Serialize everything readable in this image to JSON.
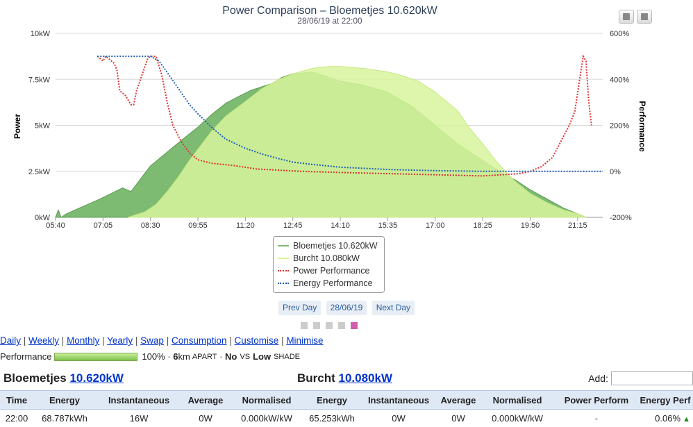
{
  "chart_data": {
    "type": "area",
    "title": "Power Comparison – Bloemetjes 10.620kW",
    "subtitle": "28/06/19 at 22:00",
    "ylabel": "Power",
    "y2label": "Performance",
    "ylim": [
      0,
      10
    ],
    "y2lim": [
      -200,
      600
    ],
    "yticks": [
      "0kW",
      "2.5kW",
      "5kW",
      "7.5kW",
      "10kW"
    ],
    "y2ticks": [
      "-200%",
      "0%",
      "200%",
      "400%",
      "600%"
    ],
    "xticks": [
      "05:40",
      "07:05",
      "08:30",
      "09:55",
      "11:20",
      "12:45",
      "14:10",
      "15:35",
      "17:00",
      "18:25",
      "19:50",
      "21:15"
    ],
    "x_start": "05:40",
    "x_end": "22:00",
    "grid": true,
    "series": [
      {
        "name": "Bloemetjes 10.620kW",
        "color": "#7dbb73",
        "axis": "left",
        "points": [
          [
            "05:40",
            0
          ],
          [
            "05:45",
            0.4
          ],
          [
            "05:50",
            0
          ],
          [
            "06:00",
            0.2
          ],
          [
            "06:30",
            0.6
          ],
          [
            "07:00",
            1.0
          ],
          [
            "07:20",
            1.3
          ],
          [
            "07:40",
            1.6
          ],
          [
            "07:55",
            1.4
          ],
          [
            "08:10",
            2.0
          ],
          [
            "08:30",
            2.8
          ],
          [
            "08:50",
            3.3
          ],
          [
            "09:10",
            3.8
          ],
          [
            "09:30",
            4.3
          ],
          [
            "09:55",
            4.9
          ],
          [
            "10:20",
            5.6
          ],
          [
            "10:45",
            6.2
          ],
          [
            "11:10",
            6.6
          ],
          [
            "11:30",
            6.9
          ],
          [
            "11:50",
            7.1
          ],
          [
            "12:10",
            7.3
          ],
          [
            "12:25",
            7.6
          ],
          [
            "12:45",
            7.8
          ],
          [
            "13:20",
            7.9
          ],
          [
            "14:10",
            7.4
          ],
          [
            "14:50",
            7.2
          ],
          [
            "15:35",
            6.8
          ],
          [
            "16:20",
            6.0
          ],
          [
            "17:00",
            5.0
          ],
          [
            "17:40",
            4.0
          ],
          [
            "18:25",
            3.1
          ],
          [
            "19:00",
            2.4
          ],
          [
            "19:25",
            2.0
          ],
          [
            "19:50",
            1.5
          ],
          [
            "20:20",
            1.0
          ],
          [
            "20:50",
            0.5
          ],
          [
            "21:15",
            0.2
          ],
          [
            "21:30",
            0
          ]
        ]
      },
      {
        "name": "Burcht 10.080kW",
        "color": "#d8f59c",
        "axis": "left",
        "points": [
          [
            "07:50",
            0
          ],
          [
            "08:00",
            0.1
          ],
          [
            "08:20",
            0.3
          ],
          [
            "08:40",
            0.7
          ],
          [
            "09:00",
            1.4
          ],
          [
            "09:20",
            2.2
          ],
          [
            "09:40",
            3.1
          ],
          [
            "09:55",
            3.7
          ],
          [
            "10:20",
            4.7
          ],
          [
            "10:45",
            5.5
          ],
          [
            "11:20",
            6.3
          ],
          [
            "11:50",
            7.0
          ],
          [
            "12:20",
            7.5
          ],
          [
            "12:45",
            7.8
          ],
          [
            "13:20",
            8.1
          ],
          [
            "13:50",
            8.2
          ],
          [
            "14:10",
            8.2
          ],
          [
            "14:50",
            8.1
          ],
          [
            "15:35",
            7.9
          ],
          [
            "16:00",
            7.7
          ],
          [
            "16:30",
            7.4
          ],
          [
            "17:00",
            6.8
          ],
          [
            "17:40",
            5.8
          ],
          [
            "18:00",
            4.9
          ],
          [
            "18:25",
            4.0
          ],
          [
            "18:45",
            3.2
          ],
          [
            "19:05",
            2.5
          ],
          [
            "19:25",
            1.9
          ],
          [
            "19:50",
            1.3
          ],
          [
            "20:20",
            0.8
          ],
          [
            "20:50",
            0.4
          ],
          [
            "21:15",
            0.2
          ],
          [
            "21:30",
            0
          ]
        ]
      },
      {
        "name": "Power Performance",
        "color": "#e03030",
        "axis": "right",
        "points": [
          [
            "06:55",
            500
          ],
          [
            "07:05",
            480
          ],
          [
            "07:10",
            500
          ],
          [
            "07:15",
            490
          ],
          [
            "07:20",
            480
          ],
          [
            "07:25",
            470
          ],
          [
            "07:30",
            440
          ],
          [
            "07:35",
            350
          ],
          [
            "07:45",
            330
          ],
          [
            "07:55",
            290
          ],
          [
            "08:00",
            290
          ],
          [
            "08:05",
            350
          ],
          [
            "08:15",
            420
          ],
          [
            "08:25",
            490
          ],
          [
            "08:30",
            500
          ],
          [
            "08:40",
            500
          ],
          [
            "08:50",
            420
          ],
          [
            "09:00",
            300
          ],
          [
            "09:10",
            200
          ],
          [
            "09:25",
            130
          ],
          [
            "09:40",
            80
          ],
          [
            "09:55",
            50
          ],
          [
            "10:20",
            35
          ],
          [
            "11:00",
            25
          ],
          [
            "11:40",
            10
          ],
          [
            "12:20",
            5
          ],
          [
            "13:00",
            0
          ],
          [
            "14:10",
            -5
          ],
          [
            "15:35",
            -10
          ],
          [
            "17:00",
            -15
          ],
          [
            "18:25",
            -20
          ],
          [
            "19:00",
            -15
          ],
          [
            "19:30",
            -10
          ],
          [
            "19:50",
            0
          ],
          [
            "20:10",
            20
          ],
          [
            "20:30",
            60
          ],
          [
            "20:45",
            130
          ],
          [
            "21:00",
            200
          ],
          [
            "21:10",
            260
          ],
          [
            "21:20",
            420
          ],
          [
            "21:25",
            500
          ],
          [
            "21:30",
            480
          ],
          [
            "21:35",
            300
          ],
          [
            "21:40",
            200
          ]
        ]
      },
      {
        "name": "Energy Performance",
        "color": "#1f5fb4",
        "axis": "right",
        "points": [
          [
            "06:55",
            500
          ],
          [
            "07:30",
            500
          ],
          [
            "08:00",
            500
          ],
          [
            "08:30",
            500
          ],
          [
            "08:45",
            480
          ],
          [
            "09:00",
            430
          ],
          [
            "09:20",
            360
          ],
          [
            "09:40",
            290
          ],
          [
            "09:55",
            250
          ],
          [
            "10:20",
            190
          ],
          [
            "10:45",
            140
          ],
          [
            "11:20",
            100
          ],
          [
            "11:50",
            75
          ],
          [
            "12:20",
            55
          ],
          [
            "12:45",
            40
          ],
          [
            "13:20",
            30
          ],
          [
            "14:10",
            18
          ],
          [
            "15:35",
            8
          ],
          [
            "17:00",
            3
          ],
          [
            "18:25",
            0
          ],
          [
            "19:50",
            0
          ],
          [
            "21:15",
            0
          ],
          [
            "22:00",
            0
          ]
        ]
      }
    ]
  },
  "daynav": {
    "prev": "Prev Day",
    "date": "28/06/19",
    "next": "Next Day"
  },
  "links": [
    "Daily",
    "Weekly",
    "Monthly",
    "Yearly",
    "Swap",
    "Consumption",
    "Customise",
    "Minimise"
  ],
  "performance": {
    "label": "Performance",
    "percent": "100%",
    "distance": "6",
    "distance_unit": "km",
    "apart": "APART",
    "orient_value": "No",
    "vs": "VS",
    "shade_value": "Low",
    "shade": "SHADE"
  },
  "sites": {
    "left_name": "Bloemetjes",
    "left_size": "10.620kW",
    "right_name": "Burcht",
    "right_size": "10.080kW",
    "add_label": "Add:"
  },
  "table": {
    "headers": [
      "Time",
      "Energy",
      "Instantaneous",
      "Average",
      "Normalised",
      "Energy",
      "Instantaneous",
      "Average",
      "Normalised",
      "Power Perform",
      "Energy Perf"
    ],
    "row": [
      "22:00",
      "68.787kWh",
      "16W",
      "0W",
      "0.000kW/kW",
      "65.253kWh",
      "0W",
      "0W",
      "0.000kW/kW",
      "-",
      "0.06%"
    ]
  }
}
